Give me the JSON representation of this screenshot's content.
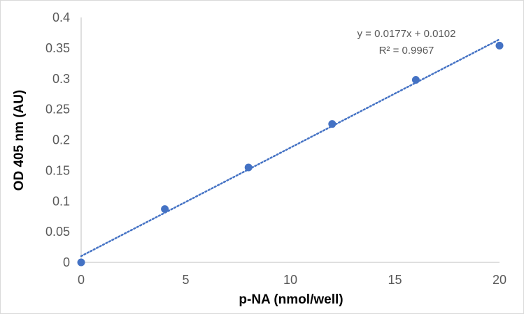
{
  "chart_data": {
    "type": "scatter",
    "xlabel": "p-NA (nmol/well)",
    "ylabel": "OD 405 nm (AU)",
    "xlim": [
      0,
      20
    ],
    "ylim": [
      0,
      0.4
    ],
    "x_ticks": [
      "0",
      "5",
      "10",
      "15",
      "20"
    ],
    "y_ticks": [
      "0",
      "0.05",
      "0.1",
      "0.15",
      "0.2",
      "0.25",
      "0.3",
      "0.35",
      "0.4"
    ],
    "grid": false,
    "legend": "none",
    "series": [
      {
        "x": [
          0,
          4,
          8,
          12,
          16,
          20
        ],
        "y": [
          0.0,
          0.087,
          0.155,
          0.226,
          0.298,
          0.354
        ]
      }
    ],
    "trendline": {
      "type": "linear",
      "slope": 0.0177,
      "intercept": 0.0102,
      "x_range": [
        0,
        20
      ],
      "equation": "y = 0.0177x + 0.0102",
      "r_squared": "R² = 0.9967"
    },
    "colors": {
      "marker": "#4472c4",
      "trendline": "#4472c4",
      "axis": "#bfbfbf"
    }
  }
}
